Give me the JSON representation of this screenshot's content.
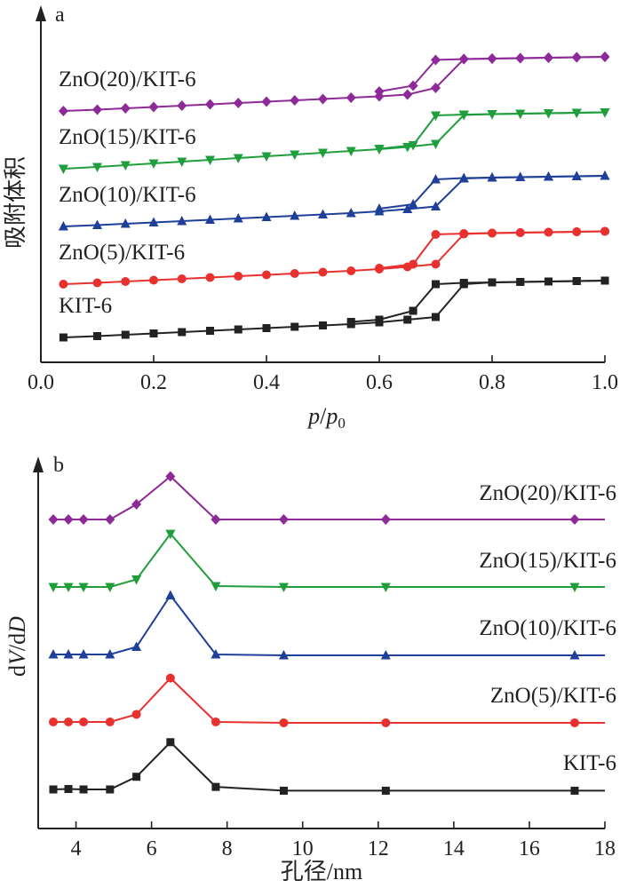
{
  "colors": {
    "KIT-6": "#222222",
    "ZnO(5)/KIT-6": "#e8302f",
    "ZnO(10)/KIT-6": "#1e3f9a",
    "ZnO(15)/KIT-6": "#1f9e3c",
    "ZnO(20)/KIT-6": "#8e2a98"
  },
  "markers": {
    "KIT-6": "square",
    "ZnO(5)/KIT-6": "circle",
    "ZnO(10)/KIT-6": "triangle-up",
    "ZnO(15)/KIT-6": "triangle-down",
    "ZnO(20)/KIT-6": "diamond"
  },
  "chart_data": [
    {
      "type": "line",
      "panel_label": "a",
      "xlabel_italic_main": "p",
      "xlabel_sep": "/",
      "xlabel_sub_main": "p",
      "xlabel_sub": "0",
      "ylabel": "吸附体积",
      "xlim": [
        0.0,
        1.0
      ],
      "xticks": [
        "0.0",
        "0.2",
        "0.4",
        "0.6",
        "0.8",
        "1.0"
      ],
      "y_scale": "arbitrary units, curves offset vertically",
      "grid": false,
      "series": [
        {
          "name": "KIT-6",
          "offset": 0,
          "adsorption": [
            [
              0.04,
              0
            ],
            [
              0.1,
              0.3
            ],
            [
              0.15,
              0.6
            ],
            [
              0.2,
              0.9
            ],
            [
              0.25,
              1.2
            ],
            [
              0.3,
              1.5
            ],
            [
              0.35,
              1.8
            ],
            [
              0.4,
              2.1
            ],
            [
              0.45,
              2.4
            ],
            [
              0.5,
              2.7
            ],
            [
              0.55,
              3.0
            ],
            [
              0.6,
              3.4
            ],
            [
              0.65,
              4.0
            ],
            [
              0.7,
              4.6
            ],
            [
              0.75,
              12.0
            ],
            [
              0.8,
              12.4
            ],
            [
              0.85,
              12.5
            ],
            [
              0.9,
              12.6
            ],
            [
              0.95,
              12.7
            ],
            [
              1.0,
              12.8
            ]
          ],
          "desorption": [
            [
              1.0,
              12.8
            ],
            [
              0.95,
              12.7
            ],
            [
              0.9,
              12.6
            ],
            [
              0.85,
              12.5
            ],
            [
              0.8,
              12.4
            ],
            [
              0.75,
              12.3
            ],
            [
              0.7,
              12.0
            ],
            [
              0.66,
              6.0
            ],
            [
              0.6,
              4.0
            ],
            [
              0.55,
              3.5
            ]
          ]
        },
        {
          "name": "ZnO(5)/KIT-6",
          "offset": 12,
          "adsorption": [
            [
              0.04,
              0
            ],
            [
              0.1,
              0.3
            ],
            [
              0.15,
              0.6
            ],
            [
              0.2,
              0.9
            ],
            [
              0.25,
              1.2
            ],
            [
              0.3,
              1.5
            ],
            [
              0.35,
              1.8
            ],
            [
              0.4,
              2.1
            ],
            [
              0.45,
              2.4
            ],
            [
              0.5,
              2.7
            ],
            [
              0.55,
              3.0
            ],
            [
              0.6,
              3.4
            ],
            [
              0.65,
              3.9
            ],
            [
              0.7,
              4.5
            ],
            [
              0.75,
              11.3
            ],
            [
              0.8,
              11.5
            ],
            [
              0.85,
              11.6
            ],
            [
              0.9,
              11.7
            ],
            [
              0.95,
              11.8
            ],
            [
              1.0,
              11.9
            ]
          ],
          "desorption": [
            [
              1.0,
              11.9
            ],
            [
              0.95,
              11.8
            ],
            [
              0.9,
              11.7
            ],
            [
              0.85,
              11.6
            ],
            [
              0.8,
              11.5
            ],
            [
              0.75,
              11.4
            ],
            [
              0.7,
              11.2
            ],
            [
              0.66,
              4.5
            ],
            [
              0.6,
              3.6
            ]
          ]
        },
        {
          "name": "ZnO(10)/KIT-6",
          "offset": 25,
          "adsorption": [
            [
              0.04,
              0
            ],
            [
              0.1,
              0.3
            ],
            [
              0.15,
              0.6
            ],
            [
              0.2,
              0.9
            ],
            [
              0.25,
              1.2
            ],
            [
              0.3,
              1.5
            ],
            [
              0.35,
              1.8
            ],
            [
              0.4,
              2.1
            ],
            [
              0.45,
              2.4
            ],
            [
              0.5,
              2.7
            ],
            [
              0.55,
              3.0
            ],
            [
              0.6,
              3.4
            ],
            [
              0.65,
              3.9
            ],
            [
              0.7,
              4.5
            ],
            [
              0.75,
              10.8
            ],
            [
              0.8,
              11.0
            ],
            [
              0.85,
              11.1
            ],
            [
              0.9,
              11.2
            ],
            [
              0.95,
              11.3
            ],
            [
              1.0,
              11.4
            ]
          ],
          "desorption": [
            [
              1.0,
              11.4
            ],
            [
              0.95,
              11.3
            ],
            [
              0.9,
              11.2
            ],
            [
              0.85,
              11.1
            ],
            [
              0.8,
              11.0
            ],
            [
              0.75,
              10.9
            ],
            [
              0.7,
              10.6
            ],
            [
              0.66,
              5.0
            ],
            [
              0.6,
              4.0
            ]
          ]
        },
        {
          "name": "ZnO(15)/KIT-6",
          "offset": 38,
          "adsorption": [
            [
              0.04,
              0
            ],
            [
              0.1,
              0.4
            ],
            [
              0.15,
              0.8
            ],
            [
              0.2,
              1.2
            ],
            [
              0.25,
              1.6
            ],
            [
              0.3,
              2.0
            ],
            [
              0.35,
              2.4
            ],
            [
              0.4,
              2.8
            ],
            [
              0.45,
              3.2
            ],
            [
              0.5,
              3.6
            ],
            [
              0.55,
              4.0
            ],
            [
              0.6,
              4.4
            ],
            [
              0.65,
              4.9
            ],
            [
              0.7,
              5.6
            ],
            [
              0.75,
              12.1
            ],
            [
              0.8,
              12.3
            ],
            [
              0.85,
              12.4
            ],
            [
              0.9,
              12.5
            ],
            [
              0.95,
              12.6
            ],
            [
              1.0,
              12.7
            ]
          ],
          "desorption": [
            [
              1.0,
              12.7
            ],
            [
              0.95,
              12.6
            ],
            [
              0.9,
              12.5
            ],
            [
              0.85,
              12.4
            ],
            [
              0.8,
              12.3
            ],
            [
              0.75,
              12.2
            ],
            [
              0.7,
              12.0
            ],
            [
              0.66,
              5.3
            ],
            [
              0.6,
              4.5
            ]
          ]
        },
        {
          "name": "ZnO(20)/KIT-6",
          "offset": 51,
          "adsorption": [
            [
              0.04,
              0
            ],
            [
              0.1,
              0.3
            ],
            [
              0.15,
              0.6
            ],
            [
              0.2,
              0.9
            ],
            [
              0.25,
              1.2
            ],
            [
              0.3,
              1.5
            ],
            [
              0.35,
              1.8
            ],
            [
              0.4,
              2.1
            ],
            [
              0.45,
              2.4
            ],
            [
              0.5,
              2.7
            ],
            [
              0.55,
              3.0
            ],
            [
              0.6,
              3.3
            ],
            [
              0.65,
              3.7
            ],
            [
              0.7,
              5.2
            ],
            [
              0.75,
              11.7
            ],
            [
              0.8,
              11.8
            ],
            [
              0.85,
              11.9
            ],
            [
              0.9,
              12.0
            ],
            [
              0.95,
              12.1
            ],
            [
              1.0,
              12.2
            ]
          ],
          "desorption": [
            [
              1.0,
              12.2
            ],
            [
              0.95,
              12.1
            ],
            [
              0.9,
              12.0
            ],
            [
              0.85,
              11.9
            ],
            [
              0.8,
              11.8
            ],
            [
              0.75,
              11.7
            ],
            [
              0.7,
              11.5
            ],
            [
              0.66,
              5.7
            ],
            [
              0.6,
              4.4
            ]
          ]
        }
      ]
    },
    {
      "type": "line",
      "panel_label": "b",
      "xlabel": "孔径/nm",
      "ylabel_italic_1": "V",
      "ylabel_prefix_1": "d",
      "ylabel_sep": "/d",
      "ylabel_italic_2": "D",
      "xlim": [
        3,
        18
      ],
      "xticks": [
        "4",
        "6",
        "8",
        "10",
        "12",
        "14",
        "16",
        "18"
      ],
      "y_scale": "arbitrary units, curves offset vertically",
      "grid": false,
      "series": [
        {
          "name": "KIT-6",
          "offset": 0,
          "x": [
            3.4,
            3.8,
            4.2,
            4.9,
            5.6,
            6.5,
            7.7,
            9.5,
            12.2,
            17.2
          ],
          "y": [
            0,
            0.05,
            0,
            0,
            1.5,
            5.6,
            0.3,
            -0.15,
            -0.15,
            -0.15
          ]
        },
        {
          "name": "ZnO(5)/KIT-6",
          "offset": 8,
          "x": [
            3.4,
            3.8,
            4.2,
            4.9,
            5.6,
            6.5,
            7.7,
            9.5,
            12.2,
            17.2
          ],
          "y": [
            0,
            0,
            0,
            0,
            0.9,
            5.2,
            0,
            -0.1,
            -0.1,
            -0.1
          ]
        },
        {
          "name": "ZnO(10)/KIT-6",
          "offset": 16,
          "x": [
            3.4,
            3.8,
            4.2,
            4.9,
            5.6,
            6.5,
            7.7,
            9.5,
            12.2,
            17.2
          ],
          "y": [
            0,
            0,
            0,
            0,
            0.9,
            7.0,
            0,
            -0.1,
            -0.1,
            -0.1
          ]
        },
        {
          "name": "ZnO(15)/KIT-6",
          "offset": 24,
          "x": [
            3.4,
            3.8,
            4.2,
            4.9,
            5.6,
            6.5,
            7.7,
            9.5,
            12.2,
            17.2
          ],
          "y": [
            0,
            0,
            0,
            0,
            0.9,
            6.3,
            0.1,
            0,
            0,
            0
          ]
        },
        {
          "name": "ZnO(20)/KIT-6",
          "offset": 32,
          "x": [
            3.4,
            3.8,
            4.2,
            4.9,
            5.6,
            6.5,
            7.7,
            9.5,
            12.2,
            17.2
          ],
          "y": [
            0,
            0,
            0,
            0,
            1.8,
            5.1,
            0,
            0,
            0,
            0
          ]
        }
      ]
    }
  ]
}
